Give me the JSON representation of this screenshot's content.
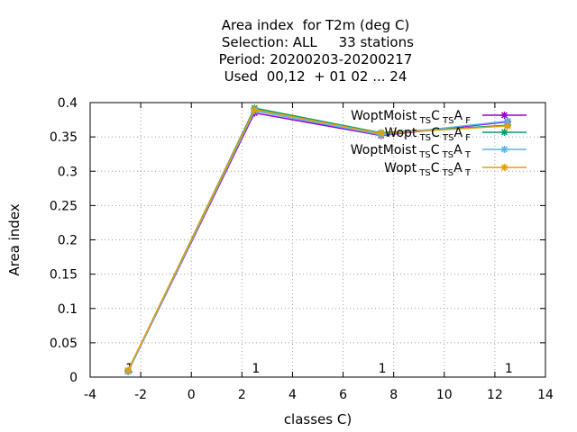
{
  "chart_data": {
    "type": "line",
    "title_lines": [
      "Area index  for T2m (deg C)",
      " Selection: ALL     33 stations",
      "Period: 20200203-20200217",
      "Used  00,12  + 01 02 ... 24"
    ],
    "xlabel": "classes C)",
    "ylabel": "Area index",
    "xlim": [
      -4,
      14
    ],
    "ylim": [
      0,
      0.4
    ],
    "xticks": [
      "-4",
      "-2",
      "0",
      "2",
      "4",
      "6",
      "8",
      "10",
      "12",
      "14"
    ],
    "yticks": [
      "0",
      "0.05",
      "0.1",
      "0.15",
      "0.2",
      "0.25",
      "0.3",
      "0.35",
      "0.4"
    ],
    "grid": true,
    "legend_position": "top-right",
    "x": [
      -2.5,
      2.5,
      7.5,
      12.5
    ],
    "series": [
      {
        "name": "WoptMoist_TS C_TS A_F",
        "label_main": "WoptMoist",
        "label_parts": [
          "TS",
          "C",
          "TS",
          "A",
          "F"
        ],
        "color": "#9400d3",
        "values": [
          0.008,
          0.385,
          0.352,
          0.372
        ]
      },
      {
        "name": "Wopt_TS C_TS A_F",
        "label_main": "Wopt",
        "label_parts": [
          "TS",
          "C",
          "TS",
          "A",
          "F"
        ],
        "color": "#009e73",
        "values": [
          0.009,
          0.392,
          0.356,
          0.367
        ]
      },
      {
        "name": "WoptMoist_TS C_TS A_T",
        "label_main": "WoptMoist",
        "label_parts": [
          "TS",
          "C",
          "TS",
          "A",
          "T"
        ],
        "color": "#56b4e9",
        "values": [
          0.008,
          0.388,
          0.353,
          0.373
        ]
      },
      {
        "name": "Wopt_TS C_TS A_T",
        "label_main": "Wopt",
        "label_parts": [
          "TS",
          "C",
          "TS",
          "A",
          "T"
        ],
        "color": "#e69f00",
        "values": [
          0.01,
          0.39,
          0.355,
          0.366
        ]
      }
    ],
    "bottom_tick_marks_x": [
      -2.5,
      2.5,
      7.5,
      12.5,
      17.5,
      22.5
    ],
    "overflow_tick_labels": [
      "1",
      "1",
      "1",
      "1",
      "1",
      "1"
    ]
  }
}
